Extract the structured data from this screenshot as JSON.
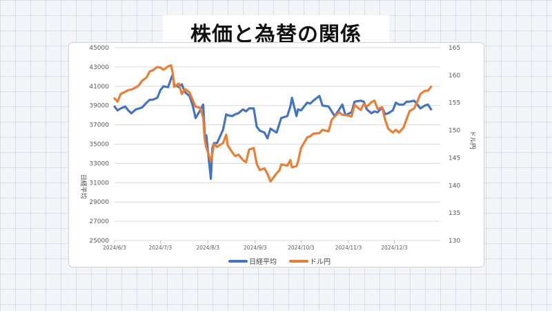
{
  "page": {
    "title": "株価と為替の関係"
  },
  "colors": {
    "nikkei": "#4472c4",
    "usdjpy": "#ed7d31",
    "grid": "#d9d9d9"
  },
  "chart_data": {
    "type": "line",
    "title": "",
    "xlabel": "",
    "ylabel_left": "日経平均",
    "ylabel_right": "ドル円",
    "x_ticks": [
      "2024/6/3",
      "2024/7/3",
      "2024/8/3",
      "2024/9/3",
      "2024/10/3",
      "2024/11/3",
      "2024/12/3"
    ],
    "x_range": [
      "2024/6/3",
      "2025/1/2"
    ],
    "y_left_range": [
      25000,
      45000
    ],
    "y_left_ticks": [
      "25000",
      "27000",
      "29000",
      "31000",
      "33000",
      "35000",
      "37000",
      "39000",
      "41000",
      "43000",
      "45000"
    ],
    "y_right_range": [
      130,
      165
    ],
    "y_right_ticks": [
      "130",
      "135",
      "140",
      "145",
      "150",
      "155",
      "160",
      "165"
    ],
    "grid": true,
    "legend_position": "bottom",
    "series": [
      {
        "name": "日経平均",
        "axis": "left",
        "x": [
          "2024/6/3",
          "2024/6/5",
          "2024/6/7",
          "2024/6/10",
          "2024/6/12",
          "2024/6/14",
          "2024/6/17",
          "2024/6/19",
          "2024/6/21",
          "2024/6/24",
          "2024/6/26",
          "2024/6/28",
          "2024/7/1",
          "2024/7/3",
          "2024/7/5",
          "2024/7/8",
          "2024/7/10",
          "2024/7/11",
          "2024/7/12",
          "2024/7/15",
          "2024/7/17",
          "2024/7/19",
          "2024/7/22",
          "2024/7/24",
          "2024/7/26",
          "2024/7/29",
          "2024/7/31",
          "2024/8/1",
          "2024/8/2",
          "2024/8/5",
          "2024/8/6",
          "2024/8/7",
          "2024/8/9",
          "2024/8/13",
          "2024/8/15",
          "2024/8/16",
          "2024/8/19",
          "2024/8/21",
          "2024/8/23",
          "2024/8/26",
          "2024/8/28",
          "2024/8/30",
          "2024/9/2",
          "2024/9/4",
          "2024/9/6",
          "2024/9/9",
          "2024/9/11",
          "2024/9/13",
          "2024/9/17",
          "2024/9/19",
          "2024/9/20",
          "2024/9/24",
          "2024/9/26",
          "2024/9/27",
          "2024/9/30",
          "2024/10/1",
          "2024/10/3",
          "2024/10/7",
          "2024/10/9",
          "2024/10/11",
          "2024/10/15",
          "2024/10/17",
          "2024/10/21",
          "2024/10/23",
          "2024/10/25",
          "2024/10/28",
          "2024/10/30",
          "2024/11/1",
          "2024/11/5",
          "2024/11/7",
          "2024/11/11",
          "2024/11/13",
          "2024/11/15",
          "2024/11/18",
          "2024/11/20",
          "2024/11/22",
          "2024/11/25",
          "2024/11/27",
          "2024/11/29",
          "2024/12/2",
          "2024/12/4",
          "2024/12/6",
          "2024/12/9",
          "2024/12/11",
          "2024/12/13",
          "2024/12/16",
          "2024/12/18",
          "2024/12/20",
          "2024/12/23",
          "2024/12/25",
          "2024/12/27"
        ],
        "values": [
          38900,
          38500,
          38700,
          38900,
          38500,
          38200,
          38600,
          38700,
          38800,
          39300,
          39600,
          39600,
          39800,
          40600,
          41000,
          40900,
          41800,
          42200,
          41200,
          40900,
          41200,
          40400,
          40000,
          39100,
          37700,
          38500,
          39100,
          36000,
          35900,
          31400,
          34600,
          35100,
          35100,
          36500,
          38100,
          38000,
          37900,
          38100,
          38200,
          38600,
          38400,
          38700,
          38700,
          36800,
          36400,
          36200,
          35600,
          36600,
          36200,
          37200,
          37700,
          37900,
          38900,
          39800,
          37900,
          38600,
          38500,
          39300,
          39200,
          39500,
          40000,
          39000,
          38900,
          38400,
          37900,
          38600,
          39100,
          38000,
          38300,
          39400,
          39500,
          39400,
          38600,
          38200,
          38400,
          38300,
          38800,
          38100,
          38200,
          38500,
          39300,
          39100,
          39100,
          39400,
          39400,
          39500,
          39100,
          38700,
          39000,
          39100,
          38600
        ]
      },
      {
        "name": "ドル円",
        "axis": "right",
        "x": [
          "2024/6/3",
          "2024/6/5",
          "2024/6/7",
          "2024/6/10",
          "2024/6/12",
          "2024/6/14",
          "2024/6/17",
          "2024/6/19",
          "2024/6/21",
          "2024/6/24",
          "2024/6/26",
          "2024/6/28",
          "2024/7/1",
          "2024/7/3",
          "2024/7/5",
          "2024/7/8",
          "2024/7/10",
          "2024/7/11",
          "2024/7/12",
          "2024/7/15",
          "2024/7/17",
          "2024/7/19",
          "2024/7/22",
          "2024/7/24",
          "2024/7/26",
          "2024/7/29",
          "2024/7/31",
          "2024/8/1",
          "2024/8/2",
          "2024/8/5",
          "2024/8/6",
          "2024/8/7",
          "2024/8/9",
          "2024/8/13",
          "2024/8/15",
          "2024/8/16",
          "2024/8/19",
          "2024/8/21",
          "2024/8/23",
          "2024/8/26",
          "2024/8/28",
          "2024/8/30",
          "2024/9/2",
          "2024/9/4",
          "2024/9/6",
          "2024/9/9",
          "2024/9/11",
          "2024/9/13",
          "2024/9/17",
          "2024/9/19",
          "2024/9/20",
          "2024/9/24",
          "2024/9/26",
          "2024/9/27",
          "2024/9/30",
          "2024/10/1",
          "2024/10/3",
          "2024/10/7",
          "2024/10/9",
          "2024/10/11",
          "2024/10/15",
          "2024/10/17",
          "2024/10/21",
          "2024/10/23",
          "2024/10/25",
          "2024/10/28",
          "2024/10/30",
          "2024/11/1",
          "2024/11/5",
          "2024/11/7",
          "2024/11/11",
          "2024/11/13",
          "2024/11/15",
          "2024/11/18",
          "2024/11/20",
          "2024/11/22",
          "2024/11/25",
          "2024/11/27",
          "2024/11/29",
          "2024/12/2",
          "2024/12/4",
          "2024/12/6",
          "2024/12/9",
          "2024/12/11",
          "2024/12/13",
          "2024/12/16",
          "2024/12/18",
          "2024/12/20",
          "2024/12/23",
          "2024/12/25",
          "2024/12/27"
        ],
        "values": [
          155.8,
          155.2,
          156.6,
          157.0,
          157.3,
          157.4,
          157.8,
          158.2,
          159.0,
          159.6,
          160.7,
          160.9,
          161.5,
          161.4,
          161.0,
          161.6,
          161.8,
          160.5,
          157.9,
          158.5,
          156.6,
          157.5,
          156.9,
          155.6,
          154.3,
          154.1,
          152.3,
          148.4,
          146.9,
          144.4,
          145.7,
          147.5,
          147.0,
          147.7,
          149.2,
          147.3,
          146.0,
          145.3,
          145.6,
          144.6,
          144.2,
          146.5,
          146.8,
          143.9,
          142.8,
          143.1,
          142.1,
          140.7,
          142.2,
          142.8,
          143.8,
          143.6,
          144.6,
          143.3,
          143.5,
          144.3,
          146.8,
          148.7,
          148.9,
          149.4,
          149.5,
          150.1,
          149.8,
          151.9,
          152.5,
          153.3,
          152.8,
          152.8,
          152.5,
          154.6,
          153.7,
          154.8,
          154.3,
          155.1,
          155.4,
          153.9,
          154.2,
          151.9,
          150.3,
          149.6,
          150.1,
          149.6,
          150.5,
          152.0,
          153.5,
          154.0,
          155.2,
          156.6,
          157.2,
          157.2,
          157.9
        ]
      }
    ]
  }
}
